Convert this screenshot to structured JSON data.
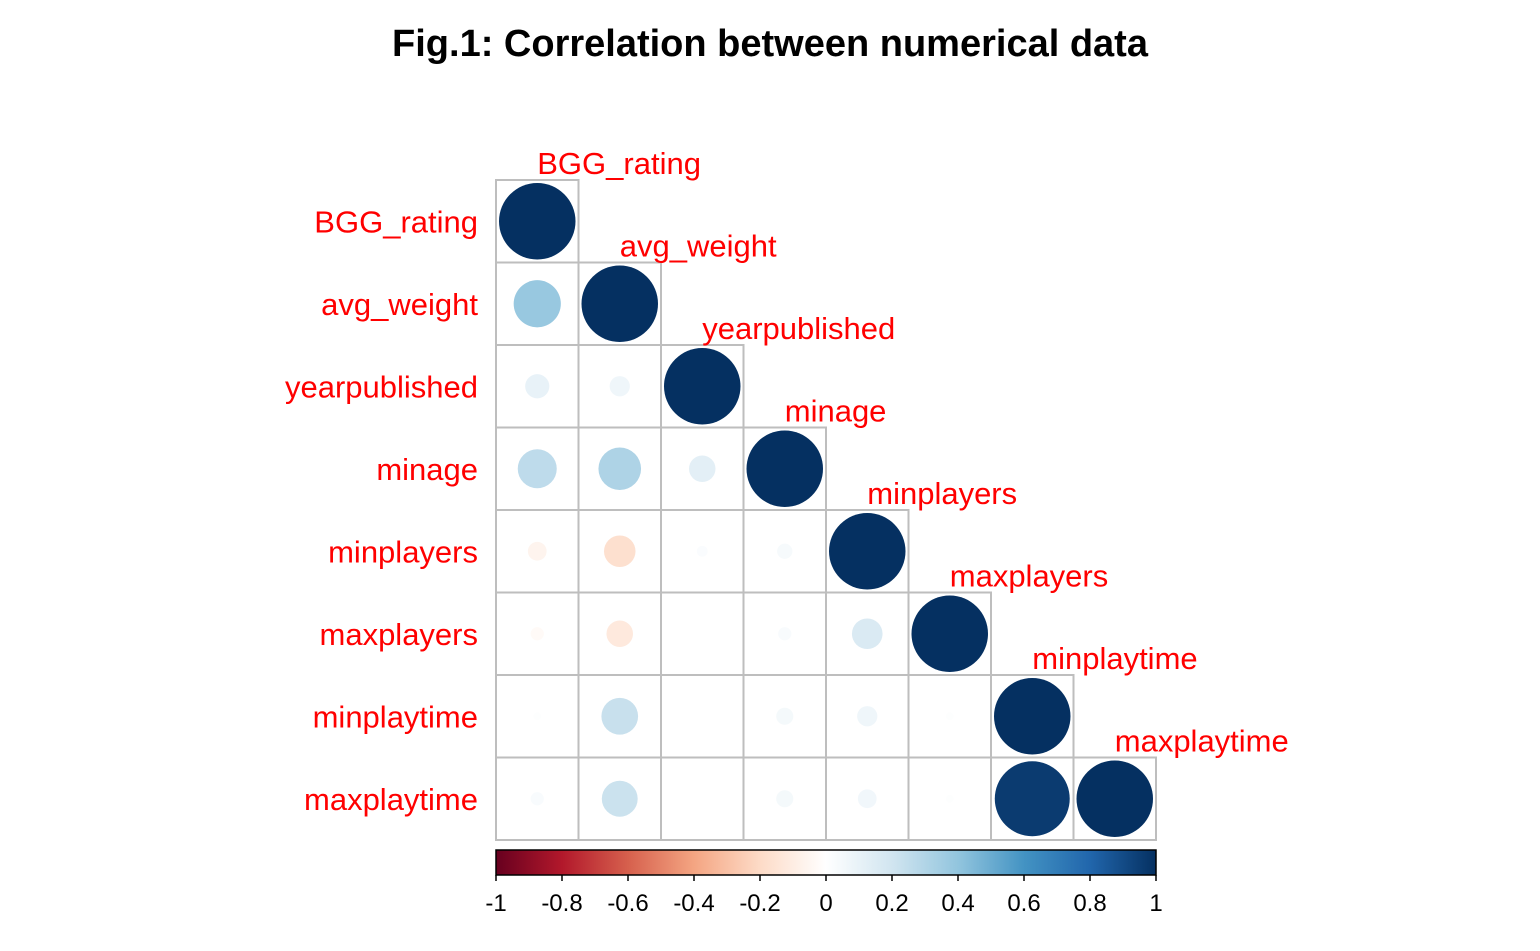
{
  "chart_data": {
    "type": "heatmap",
    "style": "corrplot-circle-lower",
    "title": "Fig.1: Correlation between numerical data",
    "variables": [
      "BGG_rating",
      "avg_weight",
      "yearpublished",
      "minage",
      "minplayers",
      "maxplayers",
      "minplaytime",
      "maxplaytime"
    ],
    "matrix": [
      [
        1.0,
        0.38,
        0.1,
        0.26,
        -0.06,
        -0.03,
        0.01,
        0.03
      ],
      [
        0.38,
        1.0,
        0.07,
        0.31,
        -0.17,
        -0.12,
        0.23,
        0.22
      ],
      [
        0.1,
        0.07,
        1.0,
        0.12,
        0.02,
        0.0,
        0.0,
        0.0
      ],
      [
        0.26,
        0.31,
        0.12,
        1.0,
        0.04,
        0.03,
        0.05,
        0.05
      ],
      [
        -0.06,
        -0.17,
        0.02,
        0.04,
        1.0,
        0.16,
        0.07,
        0.06
      ],
      [
        -0.03,
        -0.12,
        0.0,
        0.03,
        0.16,
        1.0,
        0.01,
        0.01
      ],
      [
        0.01,
        0.23,
        0.0,
        0.05,
        0.07,
        0.01,
        1.0,
        0.96
      ],
      [
        0.03,
        0.22,
        0.0,
        0.05,
        0.06,
        0.01,
        0.96,
        1.0
      ]
    ],
    "colorbar": {
      "range": [
        -1,
        1
      ],
      "ticks": [
        "-1",
        "-0.8",
        "-0.6",
        "-0.4",
        "-0.2",
        "0",
        "0.2",
        "0.4",
        "0.6",
        "0.8",
        "1"
      ],
      "colors": [
        "#67001F",
        "#B2182B",
        "#D6604D",
        "#F4A582",
        "#FDDBC7",
        "#FFFFFF",
        "#D1E5F0",
        "#92C5DE",
        "#4393C3",
        "#2166AC",
        "#053061"
      ],
      "placement": "bottom"
    },
    "label_color": "#ff0000",
    "grid_color": "#bebebe"
  }
}
